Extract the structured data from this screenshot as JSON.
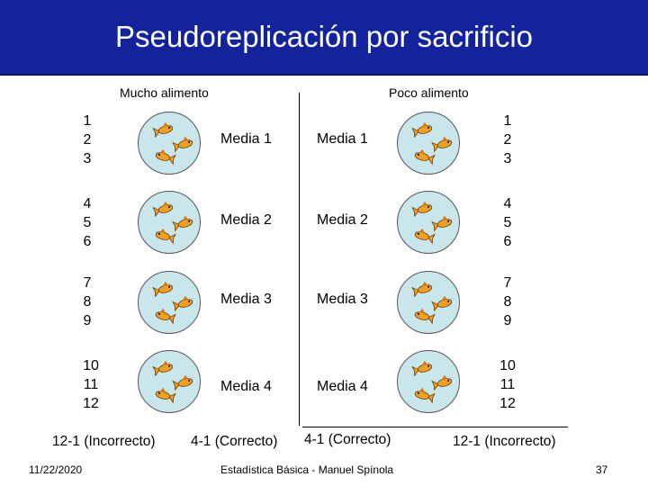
{
  "slide": {
    "title": "Pseudoreplicación por sacrificio",
    "left_header": "Mucho alimento",
    "right_header": "Poco alimento",
    "rows": [
      {
        "numbers": [
          "1",
          "2",
          "3"
        ],
        "left_media": "Media 1",
        "right_media": "Media 1"
      },
      {
        "numbers": [
          "4",
          "5",
          "6"
        ],
        "left_media": "Media 2",
        "right_media": "Media 2"
      },
      {
        "numbers": [
          "7",
          "8",
          "9"
        ],
        "left_media": "Media 3",
        "right_media": "Media 3"
      },
      {
        "numbers": [
          "10",
          "11",
          "12"
        ],
        "left_media": "Media 4",
        "right_media": "Media 4"
      }
    ],
    "verdicts": {
      "left_incorrect": "12-1 (Incorrecto)",
      "left_correct": "4-1 (Correcto)",
      "right_correct": "4-1 (Correcto)",
      "right_incorrect": "12-1 (Incorrecto)"
    },
    "footer": {
      "date": "11/22/2020",
      "center": "Estadística Básica - Manuel Spínola",
      "page": "37"
    },
    "colors": {
      "title_bar": "#12239b",
      "title_text": "#ffffff",
      "bowl": "#c9e6ec",
      "fish": "#f0a020"
    },
    "icons": {
      "bowl": "fish-bowl-icon",
      "fish": "fish-icon"
    }
  }
}
